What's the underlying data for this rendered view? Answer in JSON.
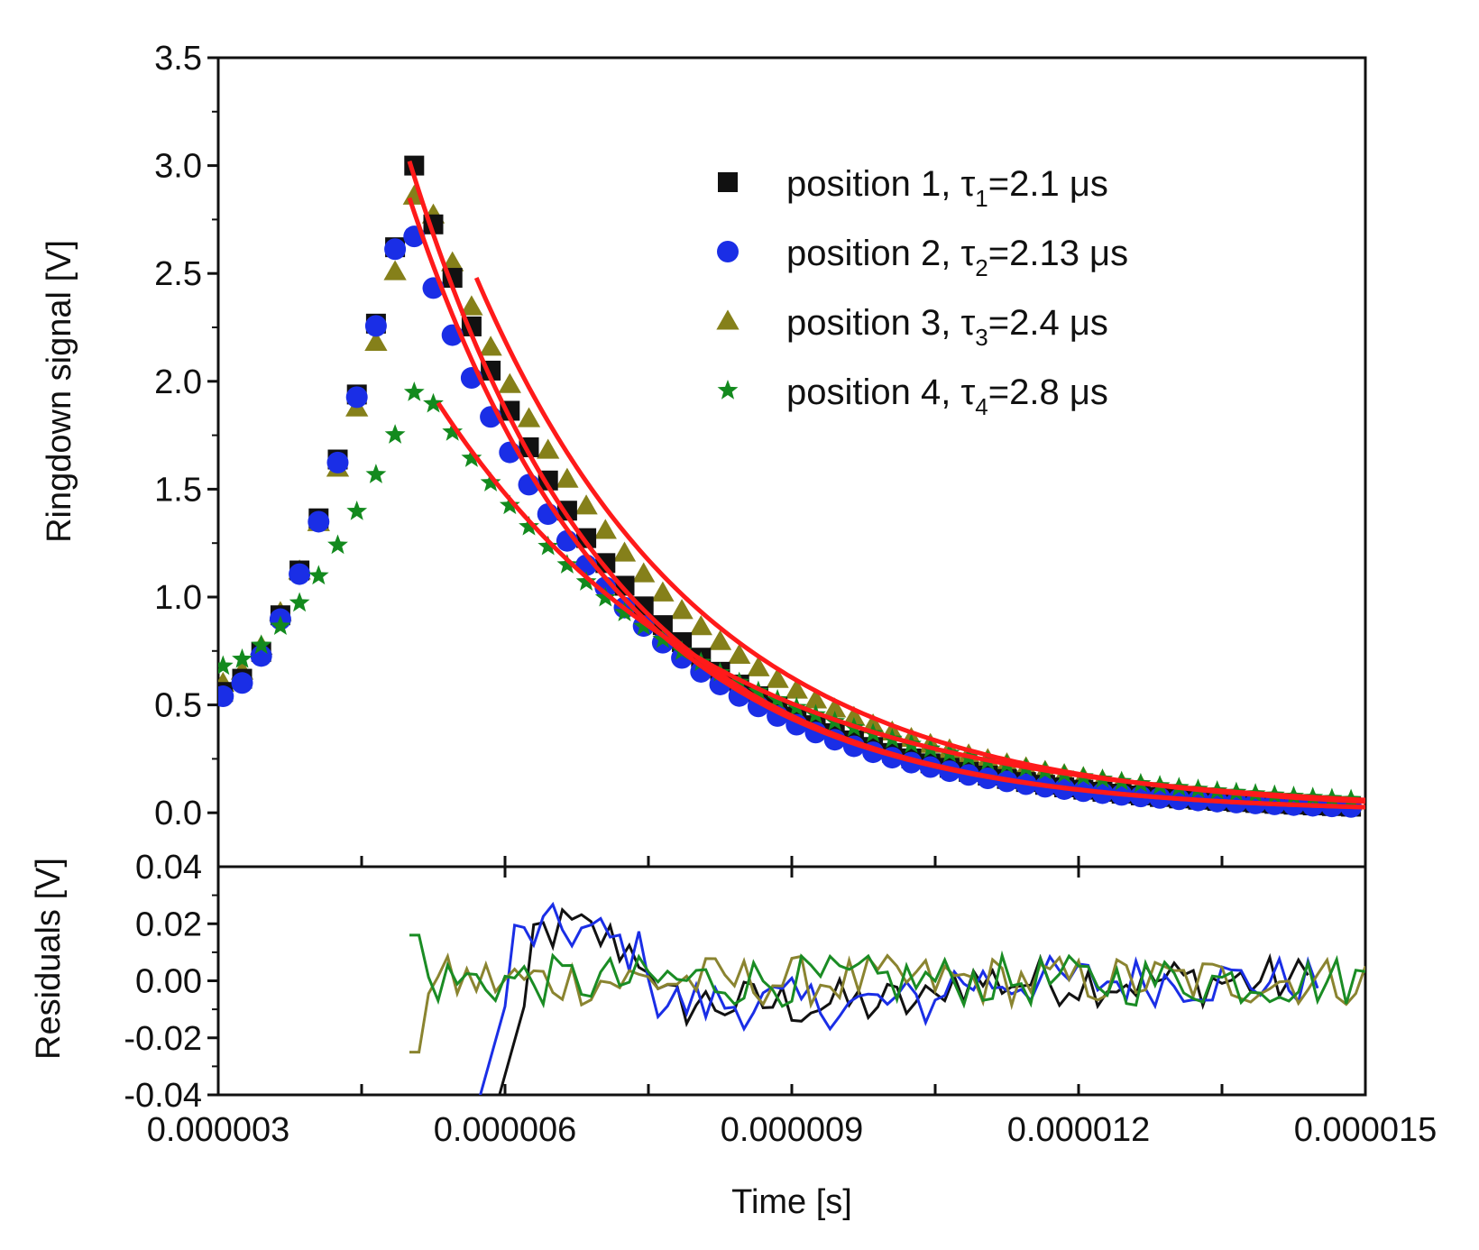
{
  "chart_data": {
    "type": "scatter",
    "main": {
      "ylabel": "Ringdown signal [V]",
      "ylim": [
        -0.25,
        3.5
      ],
      "yticks": [
        0.0,
        0.5,
        1.0,
        1.5,
        2.0,
        2.5,
        3.0,
        3.5
      ],
      "ytick_labels": [
        "0.0",
        "0.5",
        "1.0",
        "1.5",
        "2.0",
        "2.5",
        "3.0",
        "3.5"
      ],
      "extra_ytick_label": "0.04"
    },
    "residuals": {
      "ylabel": "Residuals [V]",
      "ylim": [
        -0.04,
        0.04
      ],
      "yticks": [
        -0.04,
        -0.02,
        0.0,
        0.02
      ],
      "ytick_labels": [
        "-0.04",
        "-0.02",
        "0.00",
        "0.02"
      ]
    },
    "xlabel": "Time [s]",
    "xlim": [
      3e-06,
      1.5e-05
    ],
    "xticks": [
      3e-06,
      6e-06,
      9e-06,
      1.2e-05,
      1.5e-05
    ],
    "xtick_labels": [
      "0.000003",
      "0.000006",
      "0.000009",
      "0.000012",
      "0.000015"
    ],
    "legend_position": "top-right",
    "series": [
      {
        "name": "position 1",
        "tau_label": "τ",
        "tau_sub": "1",
        "tau_value": "=2.1 μs",
        "marker": "square",
        "color": "#111111",
        "amplitude": 3.0,
        "tau_us": 2.1,
        "peak_t_us": 5.05,
        "rise_start": 0.56,
        "residual_color": "#111111"
      },
      {
        "name": "position 2",
        "tau_label": "τ",
        "tau_sub": "2",
        "tau_value": "=2.13 μs",
        "marker": "circle",
        "color": "#1a2ee6",
        "amplitude": 2.8,
        "tau_us": 2.13,
        "peak_t_us": 4.95,
        "rise_start": 0.54,
        "residual_color": "#1a2ee6"
      },
      {
        "name": "position 3",
        "tau_label": "τ",
        "tau_sub": "3",
        "tau_value": "=2.4 μs",
        "marker": "triangle",
        "color": "#85801a",
        "amplitude": 2.95,
        "tau_us": 2.4,
        "peak_t_us": 5.1,
        "rise_start": 0.6,
        "residual_color": "#8a8430"
      },
      {
        "name": "position 4",
        "tau_label": "τ",
        "tau_sub": "4",
        "tau_value": "=2.8 μs",
        "marker": "star",
        "color": "#138a1e",
        "amplitude": 2.0,
        "tau_us": 2.8,
        "peak_t_us": 5.1,
        "rise_start": 0.68,
        "residual_color": "#1a8c24"
      }
    ],
    "fit_line_color": "#ff1a1a",
    "fits": [
      {
        "series": "position 1",
        "t_start_us": 5.0,
        "y_start": 3.02,
        "tau_us": 2.1
      },
      {
        "series": "position 2",
        "t_start_us": 5.0,
        "y_start": 2.85,
        "tau_us": 2.13
      },
      {
        "series": "position 3",
        "t_start_us": 5.7,
        "y_start": 2.48,
        "tau_us": 2.4
      },
      {
        "series": "position 4",
        "t_start_us": 5.3,
        "y_start": 1.9,
        "tau_us": 2.8
      }
    ]
  }
}
